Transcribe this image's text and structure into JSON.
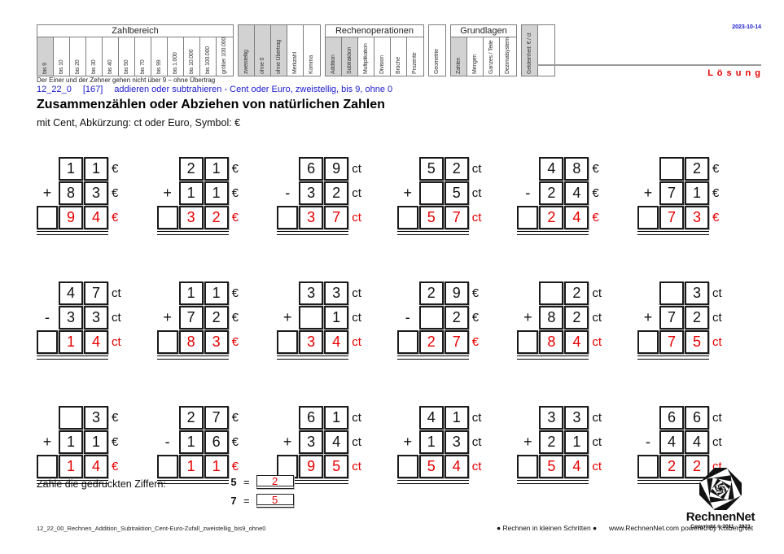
{
  "colors": {
    "accent_blue": "#1a1ace",
    "answer_red": "#e60000",
    "shaded_cell": "#d2d2d2"
  },
  "topbar": {
    "date": "2023-10-14",
    "solution": "L ö s u n g"
  },
  "matrix": {
    "groups": [
      {
        "title": "Zahlbereich",
        "cells": [
          {
            "label": "bis 9",
            "on": true
          },
          {
            "label": "bis 10",
            "on": false
          },
          {
            "label": "bis 20",
            "on": false
          },
          {
            "label": "bis 30",
            "on": false
          },
          {
            "label": "bis 40",
            "on": false
          },
          {
            "label": "bis 50",
            "on": false
          },
          {
            "label": "bis 70",
            "on": false
          },
          {
            "label": "bis 99",
            "on": false
          },
          {
            "label": "bis 1.000",
            "on": false
          },
          {
            "label": "bis 10.000",
            "on": false
          },
          {
            "label": "bis 100.000",
            "on": false
          },
          {
            "label": "größer 100.000",
            "on": false
          }
        ]
      },
      {
        "title": "",
        "cells": [
          {
            "label": "zweistellig",
            "on": true
          },
          {
            "label": "ohne 0",
            "on": true
          },
          {
            "label": "ohne Übertrag",
            "on": true
          },
          {
            "label": "Merkzahl",
            "on": false
          },
          {
            "label": "Komma",
            "on": false
          }
        ]
      },
      {
        "title": "Rechenoperationen",
        "cells": [
          {
            "label": "Addition",
            "on": true
          },
          {
            "label": "Subtraktion",
            "on": true
          },
          {
            "label": "Multiplikation",
            "on": false
          },
          {
            "label": "Division",
            "on": false
          },
          {
            "label": "Brüche",
            "on": false
          },
          {
            "label": "Prozente",
            "on": false
          }
        ]
      },
      {
        "title": "",
        "cells": [
          {
            "label": "Geometrie",
            "on": false
          }
        ]
      },
      {
        "title": "Grundlagen",
        "cells": [
          {
            "label": "Zahlen",
            "on": true
          },
          {
            "label": "Mengen",
            "on": false
          },
          {
            "label": "Ganzes / Teile",
            "on": false
          },
          {
            "label": "Dezimalsystem",
            "on": false
          }
        ]
      },
      {
        "title": "",
        "cells": [
          {
            "label": "Geldeinheit: € / ct",
            "on": true
          },
          {
            "label": "",
            "on": false
          }
        ]
      }
    ],
    "note": "Der Einer und der Zehner gehen nicht über 9 – ohne Übertrag"
  },
  "title": {
    "code": "12_22_0",
    "num": "[167]",
    "desc": "addieren oder subtrahieren - Cent oder Euro, zweistellig, bis 9, ohne 0"
  },
  "heading": "Zusammenzählen oder Abziehen von natürlichen Zahlen",
  "subheading": "mit Cent, Abkürzung: ct oder Euro, Symbol: €",
  "problems": [
    {
      "op": "+",
      "a": [
        "1",
        "1"
      ],
      "b": [
        "8",
        "3"
      ],
      "r": [
        "9",
        "4"
      ],
      "unit": "€"
    },
    {
      "op": "+",
      "a": [
        "2",
        "1"
      ],
      "b": [
        "1",
        "1"
      ],
      "r": [
        "3",
        "2"
      ],
      "unit": "€"
    },
    {
      "op": "-",
      "a": [
        "6",
        "9"
      ],
      "b": [
        "3",
        "2"
      ],
      "r": [
        "3",
        "7"
      ],
      "unit": "ct"
    },
    {
      "op": "+",
      "a": [
        "5",
        "2"
      ],
      "b": [
        "",
        "5"
      ],
      "r": [
        "5",
        "7"
      ],
      "unit": "ct"
    },
    {
      "op": "-",
      "a": [
        "4",
        "8"
      ],
      "b": [
        "2",
        "4"
      ],
      "r": [
        "2",
        "4"
      ],
      "unit": "€"
    },
    {
      "op": "+",
      "a": [
        "",
        "2"
      ],
      "b": [
        "7",
        "1"
      ],
      "r": [
        "7",
        "3"
      ],
      "unit": "€"
    },
    {
      "op": "-",
      "a": [
        "4",
        "7"
      ],
      "b": [
        "3",
        "3"
      ],
      "r": [
        "1",
        "4"
      ],
      "unit": "ct"
    },
    {
      "op": "+",
      "a": [
        "1",
        "1"
      ],
      "b": [
        "7",
        "2"
      ],
      "r": [
        "8",
        "3"
      ],
      "unit": "€"
    },
    {
      "op": "+",
      "a": [
        "3",
        "3"
      ],
      "b": [
        "",
        "1"
      ],
      "r": [
        "3",
        "4"
      ],
      "unit": "ct"
    },
    {
      "op": "-",
      "a": [
        "2",
        "9"
      ],
      "b": [
        "",
        "2"
      ],
      "r": [
        "2",
        "7"
      ],
      "unit": "€"
    },
    {
      "op": "+",
      "a": [
        "",
        "2"
      ],
      "b": [
        "8",
        "2"
      ],
      "r": [
        "8",
        "4"
      ],
      "unit": "ct"
    },
    {
      "op": "+",
      "a": [
        "",
        "3"
      ],
      "b": [
        "7",
        "2"
      ],
      "r": [
        "7",
        "5"
      ],
      "unit": "ct"
    },
    {
      "op": "+",
      "a": [
        "",
        "3"
      ],
      "b": [
        "1",
        "1"
      ],
      "r": [
        "1",
        "4"
      ],
      "unit": "€"
    },
    {
      "op": "-",
      "a": [
        "2",
        "7"
      ],
      "b": [
        "1",
        "6"
      ],
      "r": [
        "1",
        "1"
      ],
      "unit": "€"
    },
    {
      "op": "+",
      "a": [
        "6",
        "1"
      ],
      "b": [
        "3",
        "4"
      ],
      "r": [
        "9",
        "5"
      ],
      "unit": "ct"
    },
    {
      "op": "+",
      "a": [
        "4",
        "1"
      ],
      "b": [
        "1",
        "3"
      ],
      "r": [
        "5",
        "4"
      ],
      "unit": "ct"
    },
    {
      "op": "+",
      "a": [
        "3",
        "3"
      ],
      "b": [
        "2",
        "1"
      ],
      "r": [
        "5",
        "4"
      ],
      "unit": "ct"
    },
    {
      "op": "-",
      "a": [
        "6",
        "6"
      ],
      "b": [
        "4",
        "4"
      ],
      "r": [
        "2",
        "2"
      ],
      "unit": "ct"
    }
  ],
  "count_task": {
    "label": "Zähle die gedruckten Ziffern:",
    "items": [
      {
        "digit": "5",
        "eq": "=",
        "answer": "2"
      },
      {
        "digit": "7",
        "eq": "=",
        "answer": "5"
      }
    ]
  },
  "footer": {
    "filename": "12_22_00_Rechnen_Addition_Subtraktion_Cent-Euro-Zufall_zweistellig_bis9_ohne0",
    "slogan": "● Rechnen in kleinen Schritten ●",
    "site": "www.RechnenNet.com powered by KolbergNet",
    "logo_name": "RechnenNet",
    "copyright": "Copyright © 2011 - 2023"
  }
}
